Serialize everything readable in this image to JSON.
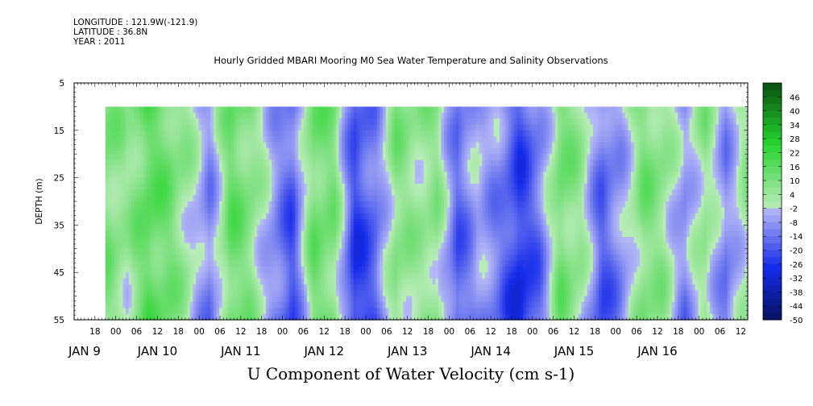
{
  "header": {
    "longitude": "LONGITUDE : 121.9W(-121.9)",
    "latitude": "LATITUDE : 36.8N",
    "year": "YEAR : 2011"
  },
  "chart_data": {
    "type": "heatmap",
    "title": "Hourly Gridded MBARI Mooring M0 Sea Water Temperature and Salinity Observations",
    "xlabel": "U Component of Water Velocity (cm s-1)",
    "ylabel": "DEPTH (m)",
    "ylim": [
      5,
      55
    ],
    "y_ticks": [
      "5",
      "15",
      "25",
      "35",
      "45",
      "55"
    ],
    "y_inverted": true,
    "x_hour_ticks": [
      "18",
      "00",
      "06",
      "12",
      "18",
      "00",
      "06",
      "12",
      "18",
      "00",
      "06",
      "12",
      "18",
      "00",
      "06",
      "12",
      "18",
      "00",
      "06",
      "12",
      "18",
      "00",
      "06",
      "12",
      "18",
      "00",
      "06",
      "12",
      "18",
      "00",
      "06",
      "12"
    ],
    "x_day_labels": [
      "JAN  9",
      "JAN 10",
      "JAN 11",
      "JAN 12",
      "JAN 13",
      "JAN 14",
      "JAN 15",
      "JAN 16"
    ],
    "data_start": "2011-01-08T21:00",
    "data_end": "2011-01-16T14:00",
    "depth_range": [
      10,
      55
    ],
    "colorbar": {
      "labels": [
        "46",
        "40",
        "34",
        "28",
        "22",
        "16",
        "10",
        "4",
        "-2",
        "-8",
        "-14",
        "-20",
        "-26",
        "-32",
        "-38",
        "-44",
        "-50"
      ],
      "range": [
        -50,
        52
      ],
      "step": 3
    },
    "series": [
      {
        "x": [
          "01-08 21h",
          "01-09 03h",
          "01-09 09h",
          "01-09 15h",
          "01-09 21h",
          "01-10 03h",
          "01-10 09h",
          "01-10 15h",
          "01-10 21h",
          "01-11 03h",
          "01-11 09h",
          "01-11 15h",
          "01-11 21h",
          "01-12 03h",
          "01-12 09h",
          "01-12 15h",
          "01-12 21h",
          "01-13 03h",
          "01-13 09h",
          "01-13 15h",
          "01-13 21h",
          "01-14 03h",
          "01-14 09h",
          "01-14 15h",
          "01-14 21h",
          "01-15 03h",
          "01-15 09h",
          "01-15 15h",
          "01-15 21h",
          "01-16 03h",
          "01-16 09h",
          "01-16 14h"
        ],
        "values": [
          12,
          6,
          18,
          14,
          4,
          -10,
          16,
          10,
          -6,
          -18,
          14,
          12,
          -22,
          -14,
          10,
          6,
          8,
          -16,
          -4,
          -10,
          -24,
          -12,
          14,
          6,
          -16,
          -6,
          12,
          8,
          -8,
          8,
          -10,
          6
        ]
      }
    ]
  }
}
